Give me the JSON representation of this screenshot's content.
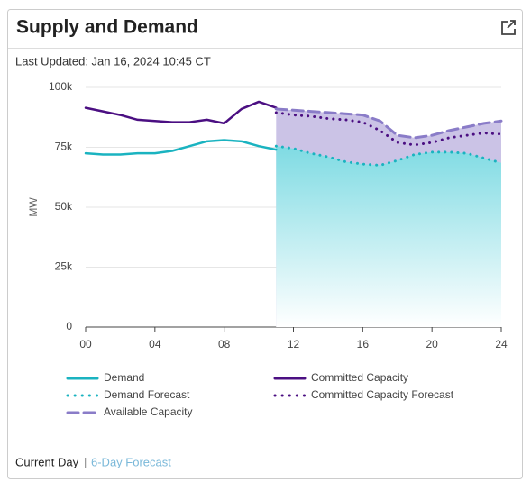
{
  "chart_data": {
    "type": "line",
    "title": "Supply and Demand",
    "ylabel": "MW",
    "x": [
      0,
      1,
      2,
      3,
      4,
      5,
      6,
      7,
      8,
      9,
      10,
      11,
      12,
      13,
      14,
      15,
      16,
      17,
      18,
      19,
      20,
      21,
      22,
      23,
      24
    ],
    "xlim": [
      0,
      24
    ],
    "xticks": [
      {
        "value": 0,
        "label": "00"
      },
      {
        "value": 4,
        "label": "04"
      },
      {
        "value": 8,
        "label": "08"
      },
      {
        "value": 12,
        "label": "12"
      },
      {
        "value": 16,
        "label": "16"
      },
      {
        "value": 20,
        "label": "20"
      },
      {
        "value": 24,
        "label": "24"
      }
    ],
    "ylim": [
      0,
      100000
    ],
    "yticks": [
      0,
      {
        "value": 25000,
        "label": "25k"
      },
      {
        "value": 50000,
        "label": "50k"
      },
      {
        "value": 75000,
        "label": "75k"
      },
      {
        "value": 100000,
        "label": "100k"
      }
    ],
    "grid": true,
    "series": [
      {
        "name": "Demand",
        "color": "#1ab3c0",
        "style": "solid",
        "values": [
          72500,
          72000,
          72000,
          72500,
          72500,
          73500,
          75500,
          77500,
          78000,
          77500,
          75500,
          74000,
          null,
          null,
          null,
          null,
          null,
          null,
          null,
          null,
          null,
          null,
          null,
          null,
          null
        ]
      },
      {
        "name": "Committed Capacity",
        "color": "#4b0f82",
        "style": "solid",
        "values": [
          91500,
          90000,
          88500,
          86500,
          86000,
          85500,
          85500,
          86500,
          85000,
          91000,
          94000,
          91500,
          null,
          null,
          null,
          null,
          null,
          null,
          null,
          null,
          null,
          null,
          null,
          null,
          null
        ]
      },
      {
        "name": "Demand Forecast",
        "color": "#1ab3c0",
        "style": "dotted",
        "fill": true,
        "values": [
          null,
          null,
          null,
          null,
          null,
          null,
          null,
          null,
          null,
          null,
          null,
          75500,
          74500,
          72500,
          71000,
          69000,
          68000,
          67500,
          69500,
          72000,
          73000,
          73000,
          72500,
          70500,
          68500
        ]
      },
      {
        "name": "Committed Capacity Forecast",
        "color": "#4b0f82",
        "style": "dotted",
        "values": [
          null,
          null,
          null,
          null,
          null,
          null,
          null,
          null,
          null,
          null,
          null,
          89500,
          88500,
          88000,
          87000,
          86500,
          85500,
          82000,
          77000,
          76000,
          77000,
          79000,
          80000,
          81000,
          80500
        ]
      },
      {
        "name": "Available Capacity",
        "color": "#8a7cc8",
        "style": "dashed",
        "fill": true,
        "values": [
          null,
          null,
          null,
          null,
          null,
          null,
          null,
          null,
          null,
          null,
          null,
          91000,
          90500,
          90000,
          89500,
          89000,
          88500,
          86000,
          80000,
          79000,
          80000,
          82000,
          83500,
          85000,
          86000
        ]
      }
    ]
  },
  "last_updated": "Last Updated: Jan 16, 2024 10:45 CT",
  "footer": {
    "current": "Current Day",
    "separator": "|",
    "forecast": "6-Day Forecast"
  }
}
